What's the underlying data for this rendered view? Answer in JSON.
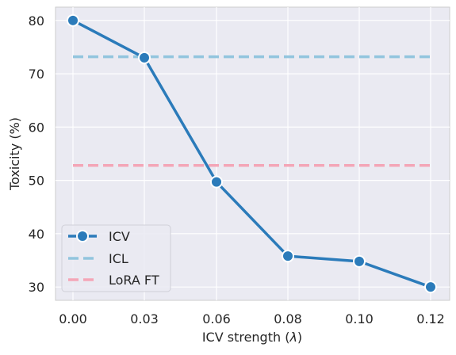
{
  "chart_data": {
    "type": "line",
    "xlabel": "ICV strength (",
    "xlabel_symbol": "λ",
    "xlabel_close": ")",
    "ylabel": "Toxicity (%)",
    "x_tick_labels": [
      "0.00",
      "0.03",
      "0.06",
      "0.08",
      "0.10",
      "0.12"
    ],
    "y_ticks": [
      30,
      40,
      50,
      60,
      70,
      80
    ],
    "ylim": [
      27.5,
      82.5
    ],
    "grid": true,
    "legend_position": "lower-left",
    "series": [
      {
        "name": "ICV",
        "style": "solid-markers",
        "color": "#2b7bba",
        "values": [
          80,
          73,
          49.7,
          35.8,
          34.8,
          30
        ]
      },
      {
        "name": "ICL",
        "style": "dashed",
        "color": "#92c5de",
        "values": [
          73.2,
          73.2,
          73.2,
          73.2,
          73.2,
          73.2
        ]
      },
      {
        "name": "LoRA FT",
        "style": "dashed",
        "color": "#f4a6b7",
        "values": [
          52.8,
          52.8,
          52.8,
          52.8,
          52.8,
          52.8
        ]
      }
    ],
    "background_color": "#eaeaf2"
  }
}
